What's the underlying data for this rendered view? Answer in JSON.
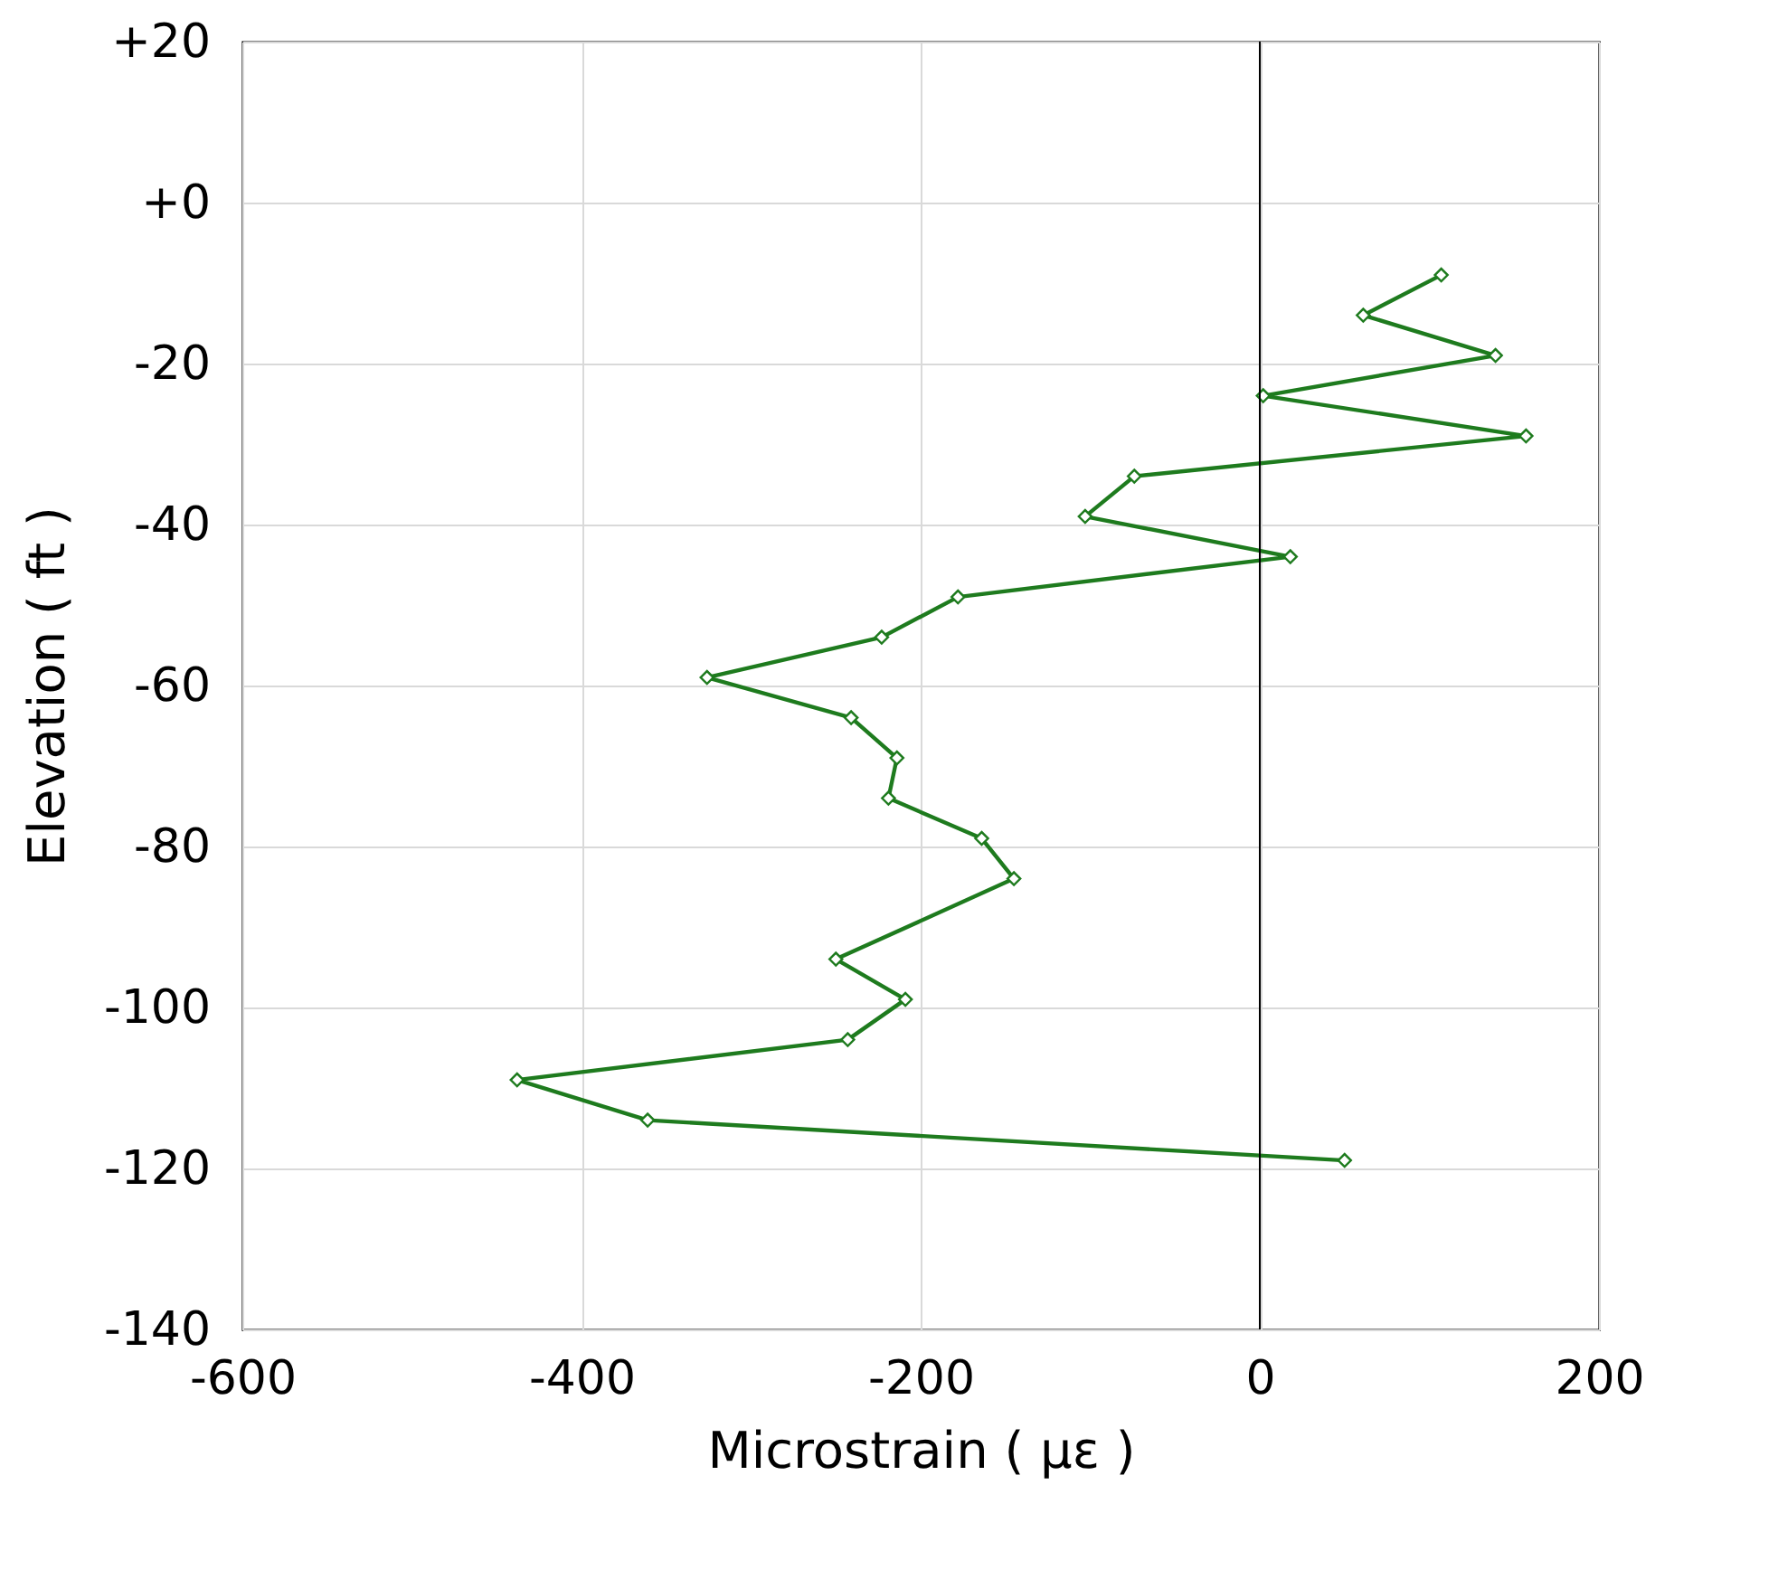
{
  "chart_data": {
    "type": "line",
    "xlabel": "Microstrain ( με )",
    "ylabel": "Elevation ( ft )",
    "x": [
      107,
      61,
      139,
      2,
      157,
      -74,
      -103,
      18,
      -178,
      -223,
      -326,
      -241,
      -214,
      -219,
      -164,
      -145,
      -250,
      -209,
      -243,
      -438,
      -361,
      50
    ],
    "series": [
      {
        "color": "#1e7b1e",
        "values": [
          -9,
          -14,
          -19,
          -24,
          -29,
          -34,
          -39,
          -44,
          -49,
          -54,
          -59,
          -64,
          -69,
          -74,
          -79,
          -84,
          -94,
          -99,
          -104,
          -109,
          -114,
          -119
        ]
      }
    ],
    "xlim": [
      -600,
      200
    ],
    "xticks": [
      -600,
      -400,
      -200,
      0,
      200
    ],
    "ylim": [
      -140,
      20
    ],
    "yticks": [
      {
        "value": 20,
        "label": "+20"
      },
      {
        "value": 0,
        "label": "+0"
      },
      -20,
      -40,
      -60,
      -80,
      -100,
      -120,
      -140
    ],
    "ref_lines": [
      {
        "axis": "x",
        "value": 0,
        "color": "#000000"
      }
    ],
    "grid": true,
    "marker": "diamond",
    "line_style": "solid"
  }
}
